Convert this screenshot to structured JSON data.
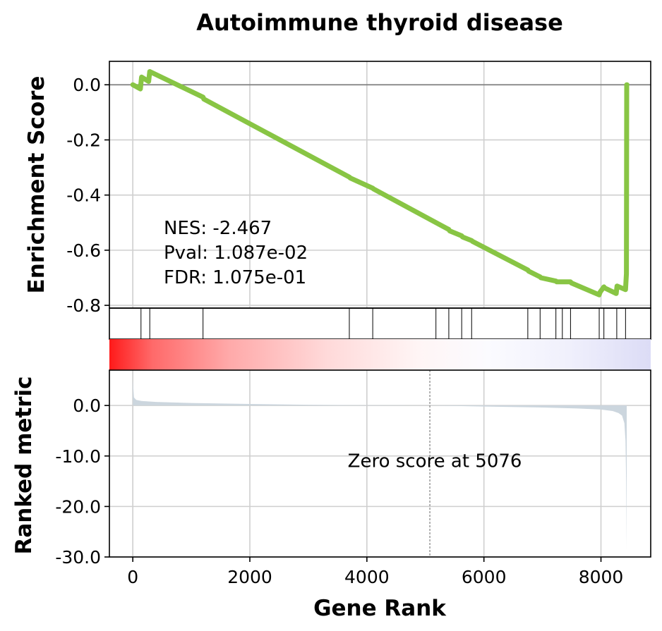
{
  "chart_data": {
    "type": "line",
    "title": "Autoimmune thyroid disease",
    "xlabel": "Gene Rank",
    "xlim": [
      -400,
      8850
    ],
    "x_ticks": [
      {
        "value": 0,
        "label": "0"
      },
      {
        "value": 2000,
        "label": "2000"
      },
      {
        "value": 4000,
        "label": "4000"
      },
      {
        "value": 6000,
        "label": "6000"
      },
      {
        "value": 8000,
        "label": "8000"
      }
    ],
    "enrichment": {
      "ylabel": "Enrichment Score",
      "ylim": [
        -0.81,
        0.085
      ],
      "y_ticks": [
        {
          "value": 0.0,
          "label": "0.0"
        },
        {
          "value": -0.2,
          "label": "-0.2"
        },
        {
          "value": -0.4,
          "label": "-0.4"
        },
        {
          "value": -0.6,
          "label": "-0.6"
        },
        {
          "value": -0.8,
          "label": "-0.8"
        }
      ],
      "line_color": "#88c544",
      "x": [
        0,
        130,
        150,
        270,
        290,
        1200,
        1215,
        3700,
        3715,
        4100,
        4115,
        5400,
        5415,
        5620,
        5635,
        5790,
        5805,
        6750,
        6765,
        6960,
        6975,
        7230,
        7245,
        7480,
        7495,
        7970,
        7985,
        8050,
        8065,
        8260,
        8275,
        8420,
        8435,
        8440,
        8445
      ],
      "y": [
        0.0,
        -0.015,
        0.028,
        0.012,
        0.048,
        -0.045,
        -0.052,
        -0.335,
        -0.338,
        -0.375,
        -0.378,
        -0.525,
        -0.53,
        -0.548,
        -0.552,
        -0.565,
        -0.568,
        -0.672,
        -0.676,
        -0.697,
        -0.7,
        -0.712,
        -0.715,
        -0.715,
        -0.719,
        -0.762,
        -0.752,
        -0.733,
        -0.737,
        -0.757,
        -0.73,
        -0.743,
        -0.685,
        0.0,
        0.0
      ],
      "stats": {
        "nes": "NES: -2.467",
        "pval": "Pval: 1.087e-02",
        "fdr": "FDR: 1.075e-01"
      }
    },
    "hits": [
      140,
      290,
      1200,
      3700,
      4100,
      5180,
      5400,
      5620,
      5790,
      6750,
      6960,
      7230,
      7340,
      7480,
      7970,
      8050,
      8270,
      8420
    ],
    "ranked_metric": {
      "ylabel": "Ranked metric",
      "ylim": [
        -30.0,
        7.0
      ],
      "y_ticks": [
        {
          "value": 0.0,
          "label": "0.0"
        },
        {
          "value": -10.0,
          "label": "-10.0"
        },
        {
          "value": -20.0,
          "label": "-20.0"
        },
        {
          "value": -30.0,
          "label": "-30.0"
        }
      ],
      "fill_color": "#ccd6de",
      "x": [
        0,
        20,
        60,
        150,
        400,
        1000,
        2000,
        3000,
        4000,
        5076,
        6000,
        7000,
        7600,
        8000,
        8200,
        8300,
        8360,
        8400,
        8420,
        8430,
        8440
      ],
      "y": [
        5.0,
        1.6,
        1.1,
        0.9,
        0.7,
        0.5,
        0.3,
        0.15,
        0.05,
        0.0,
        -0.2,
        -0.4,
        -0.6,
        -0.8,
        -1.1,
        -1.5,
        -2.0,
        -3.5,
        -7.0,
        -15.0,
        -28.5
      ],
      "zero_score_rank": 5076,
      "zero_score_label": "Zero score at 5076"
    }
  }
}
